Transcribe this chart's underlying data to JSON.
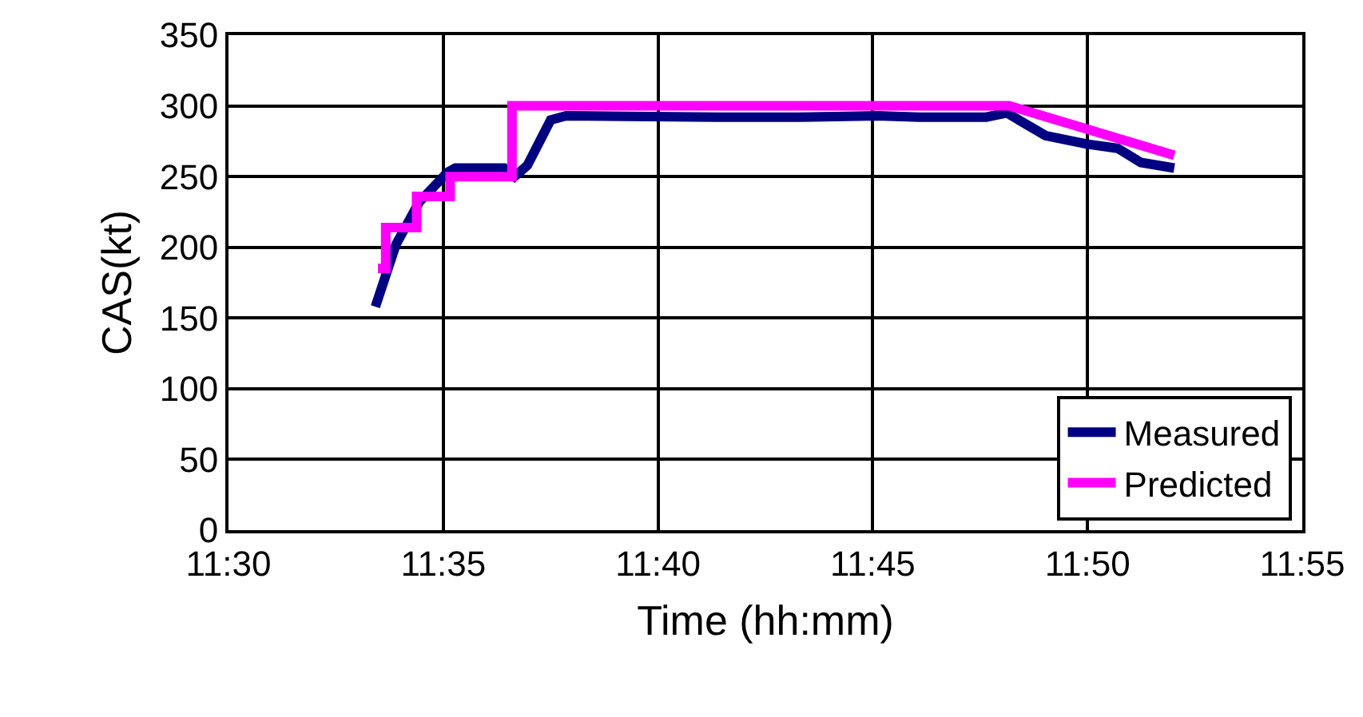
{
  "chart_data": {
    "type": "line",
    "xlabel": "Time (hh:mm)",
    "ylabel": "CAS(kt)",
    "xlim": [
      11.5,
      11.9166667
    ],
    "xticks": [
      {
        "value": 11.5,
        "label": "11:30"
      },
      {
        "value": 11.5833333,
        "label": "11:35"
      },
      {
        "value": 11.6666667,
        "label": "11:40"
      },
      {
        "value": 11.75,
        "label": "11:45"
      },
      {
        "value": 11.8333333,
        "label": "11:50"
      },
      {
        "value": 11.9166667,
        "label": "11:55"
      }
    ],
    "ylim": [
      0,
      350
    ],
    "yticks": [
      0,
      50,
      100,
      150,
      200,
      250,
      300,
      350
    ],
    "grid": true,
    "legend": "bottom right",
    "marker": "none",
    "line_style": "solid",
    "series": [
      {
        "name": "Measured",
        "color": "#000080",
        "x": [
          11.557,
          11.565,
          11.574,
          11.585,
          11.588,
          11.607,
          11.611,
          11.616,
          11.625,
          11.631,
          11.69,
          11.721,
          11.752,
          11.768,
          11.786,
          11.794,
          11.802,
          11.817,
          11.833,
          11.845,
          11.854,
          11.867
        ],
        "values": [
          158,
          202,
          232,
          253,
          256,
          256,
          250,
          258,
          290,
          293,
          292,
          292,
          293,
          292,
          292,
          292,
          295,
          279,
          273,
          270,
          260,
          256
        ]
      },
      {
        "name": "Predicted",
        "color": "#ff00ff",
        "x": [
          11.558,
          11.561,
          11.561,
          11.573,
          11.573,
          11.586,
          11.586,
          11.61,
          11.61,
          11.803,
          11.867
        ],
        "values": [
          185,
          185,
          214,
          214,
          236,
          236,
          250,
          250,
          300,
          300,
          265
        ]
      }
    ]
  }
}
